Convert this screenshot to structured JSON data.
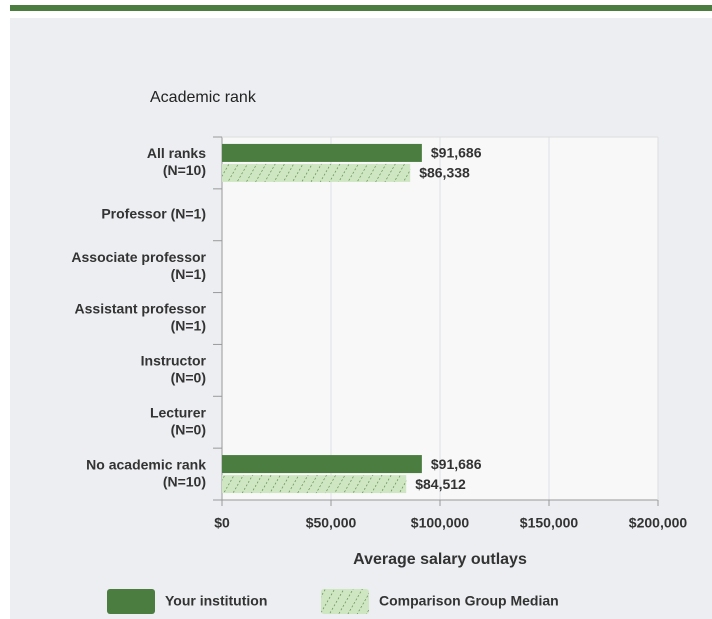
{
  "chart_data": {
    "type": "barh",
    "title": "Academic rank",
    "x_label": "Average salary outlays",
    "categories": [
      [
        "All ranks",
        "(N=10)"
      ],
      [
        "Professor (N=1)"
      ],
      [
        "Associate professor",
        "(N=1)"
      ],
      [
        "Assistant professor",
        "(N=1)"
      ],
      [
        "Instructor",
        "(N=0)"
      ],
      [
        "Lecturer",
        "(N=0)"
      ],
      [
        "No academic rank",
        "(N=10)"
      ]
    ],
    "series": [
      {
        "name": "Your institution",
        "color": "#4a7d3f",
        "values": [
          91686,
          null,
          null,
          null,
          null,
          null,
          91686
        ],
        "value_labels": [
          "$91,686",
          null,
          null,
          null,
          null,
          null,
          "$91,686"
        ]
      },
      {
        "name": "Comparison Group Median",
        "color": "#cfe6c2",
        "hatch": true,
        "values": [
          86338,
          null,
          null,
          null,
          null,
          null,
          84512
        ],
        "value_labels": [
          "$86,338",
          null,
          null,
          null,
          null,
          null,
          "$84,512"
        ]
      }
    ],
    "xlim": [
      0,
      200000
    ],
    "xticks": [
      {
        "value": 0,
        "label": "$0"
      },
      {
        "value": 50000,
        "label": "$50,000"
      },
      {
        "value": 100000,
        "label": "$100,000"
      },
      {
        "value": 150000,
        "label": "$150,000"
      },
      {
        "value": 200000,
        "label": "$200,000"
      }
    ],
    "grid": true
  }
}
